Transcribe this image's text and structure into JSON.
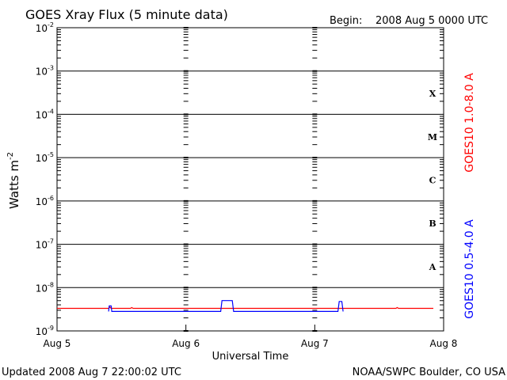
{
  "header": {
    "title": "GOES Xray Flux (5 minute data)",
    "begin_label": "Begin:",
    "begin_value": "2008 Aug 5 0000 UTC"
  },
  "footer": {
    "updated": "Updated 2008 Aug  7 22:00:02 UTC",
    "credit": "NOAA/SWPC Boulder, CO USA"
  },
  "colors": {
    "long_channel": "#ff0000",
    "short_channel": "#0000ff",
    "axes": "#000000"
  },
  "chart_data": {
    "type": "line",
    "title": "GOES Xray Flux (5 minute data)",
    "xlabel": "Universal Time",
    "ylabel": "Watts m",
    "ylabel_superscript": "-2",
    "yscale": "log",
    "ylim": [
      1e-09,
      0.01
    ],
    "xlim_days": [
      0,
      3
    ],
    "x_ticks": [
      {
        "day": 0,
        "label": "Aug 5"
      },
      {
        "day": 1,
        "label": "Aug 6"
      },
      {
        "day": 2,
        "label": "Aug 7"
      },
      {
        "day": 3,
        "label": "Aug 8"
      }
    ],
    "y_ticks": [
      {
        "exp": -9,
        "base": "10",
        "sup": "-9"
      },
      {
        "exp": -8,
        "base": "10",
        "sup": "-8"
      },
      {
        "exp": -7,
        "base": "10",
        "sup": "-7"
      },
      {
        "exp": -6,
        "base": "10",
        "sup": "-6"
      },
      {
        "exp": -5,
        "base": "10",
        "sup": "-5"
      },
      {
        "exp": -4,
        "base": "10",
        "sup": "-4"
      },
      {
        "exp": -3,
        "base": "10",
        "sup": "-3"
      },
      {
        "exp": -2,
        "base": "10",
        "sup": "-2"
      }
    ],
    "grid_y_exps": [
      -8,
      -7,
      -6,
      -5,
      -4,
      -3
    ],
    "flare_classes": [
      {
        "label": "A",
        "exp": -8
      },
      {
        "label": "B",
        "exp": -7
      },
      {
        "label": "C",
        "exp": -6
      },
      {
        "label": "M",
        "exp": -5
      },
      {
        "label": "X",
        "exp": -4
      }
    ],
    "series": [
      {
        "name": "GOES10 1.0-8.0 A",
        "color": "#ff0000",
        "points": [
          [
            0.0,
            -8.48
          ],
          [
            0.4,
            -8.48
          ],
          [
            0.41,
            -8.45
          ],
          [
            0.42,
            -8.48
          ],
          [
            0.57,
            -8.48
          ],
          [
            0.58,
            -8.46
          ],
          [
            0.59,
            -8.48
          ],
          [
            1.0,
            -8.48
          ],
          [
            1.3,
            -8.48
          ],
          [
            2.0,
            -8.48
          ],
          [
            2.2,
            -8.48
          ],
          [
            2.63,
            -8.48
          ],
          [
            2.64,
            -8.46
          ],
          [
            2.65,
            -8.48
          ],
          [
            2.92,
            -8.48
          ]
        ]
      },
      {
        "name": "GOES10 0.5-4.0 A",
        "color": "#0000ff",
        "points": [
          [
            0.4,
            -8.55
          ],
          [
            0.405,
            -8.42
          ],
          [
            0.42,
            -8.42
          ],
          [
            0.425,
            -8.55
          ],
          [
            1.0,
            -8.55
          ],
          [
            1.08,
            -8.55
          ],
          [
            1.27,
            -8.55
          ],
          [
            1.28,
            -8.3
          ],
          [
            1.36,
            -8.3
          ],
          [
            1.37,
            -8.55
          ],
          [
            2.0,
            -8.55
          ],
          [
            2.12,
            -8.55
          ],
          [
            2.18,
            -8.55
          ],
          [
            2.19,
            -8.32
          ],
          [
            2.21,
            -8.32
          ],
          [
            2.22,
            -8.55
          ]
        ]
      }
    ],
    "right_labels": [
      {
        "text": "GOES10 1.0-8.0 A",
        "color": "#ff0000"
      },
      {
        "text": "GOES10 0.5-4.0 A",
        "color": "#0000ff"
      }
    ]
  }
}
